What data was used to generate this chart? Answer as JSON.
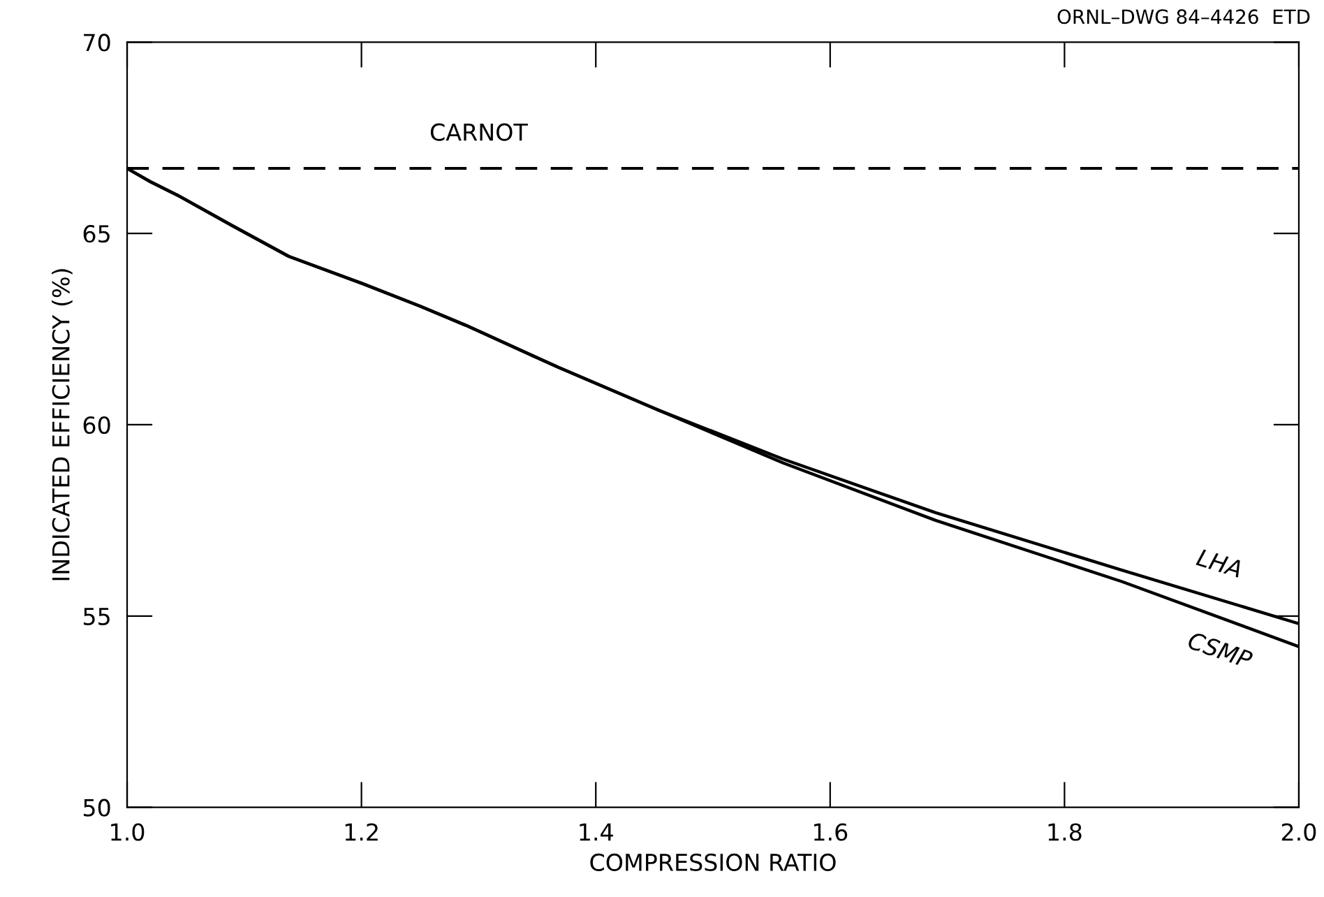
{
  "chart_data": {
    "type": "line",
    "xlabel": "COMPRESSION RATIO",
    "ylabel": "INDICATED EFFICIENCY (%)",
    "annotations": [
      "ORNL–DWG 84–4426  ETD"
    ],
    "xlim": [
      1.0,
      2.0
    ],
    "xticks": [
      {
        "value": 1.0,
        "label": "1.0"
      },
      {
        "value": 1.2,
        "label": "1.2"
      },
      1.4,
      1.6,
      1.8,
      {
        "value": 2.0,
        "label": "2.0"
      }
    ],
    "ylim": [
      50,
      70
    ],
    "yticks": [
      50,
      55,
      60,
      65,
      70
    ],
    "grid": false,
    "legend": false,
    "marker": "none",
    "line_style": "solid",
    "ref_lines": [
      {
        "axis": "y",
        "value": 66.7,
        "label": "CARNOT",
        "color": "#000000",
        "line_style": "dashed"
      }
    ],
    "series": [
      {
        "name": "LHA",
        "color": "#000000",
        "x": [
          1.0,
          1.02,
          1.043,
          1.09,
          1.138,
          1.2,
          1.25,
          1.289,
          1.368,
          1.452,
          1.56,
          1.69,
          1.849,
          2.0
        ],
        "values": [
          66.7,
          66.35,
          66.0,
          65.2,
          64.4,
          63.7,
          63.1,
          62.6,
          61.5,
          60.4,
          59.1,
          57.7,
          56.2,
          54.8
        ]
      },
      {
        "name": "CSMP",
        "color": "#000000",
        "x": [
          1.0,
          1.02,
          1.043,
          1.09,
          1.138,
          1.2,
          1.25,
          1.289,
          1.368,
          1.452,
          1.56,
          1.69,
          1.849,
          2.0
        ],
        "values": [
          66.7,
          66.35,
          66.0,
          65.2,
          64.4,
          63.7,
          63.1,
          62.6,
          61.5,
          60.4,
          59.0,
          57.5,
          55.9,
          54.2
        ]
      }
    ]
  }
}
